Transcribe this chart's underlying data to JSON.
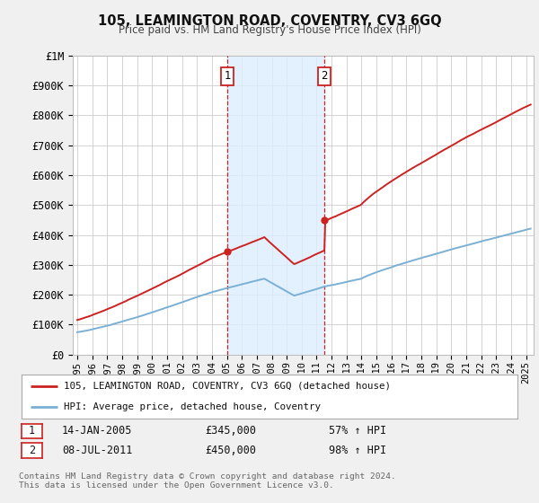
{
  "title": "105, LEAMINGTON ROAD, COVENTRY, CV3 6GQ",
  "subtitle": "Price paid vs. HM Land Registry's House Price Index (HPI)",
  "ylim": [
    0,
    1000000
  ],
  "yticks": [
    0,
    100000,
    200000,
    300000,
    400000,
    500000,
    600000,
    700000,
    800000,
    900000,
    1000000
  ],
  "ytick_labels": [
    "£0",
    "£100K",
    "£200K",
    "£300K",
    "£400K",
    "£500K",
    "£600K",
    "£700K",
    "£800K",
    "£900K",
    "£1M"
  ],
  "xlim_start": 1994.7,
  "xlim_end": 2025.5,
  "background_color": "#f0f0f0",
  "plot_bg_color": "#ffffff",
  "grid_color": "#cccccc",
  "hpi_line_color": "#7ab0d4",
  "price_line_color": "#cc2222",
  "shade_color": "#ddeeff",
  "vline_color": "#cc2222",
  "event1_x": 2005.04,
  "event1_y": 345000,
  "event1_label": "1",
  "event1_date": "14-JAN-2005",
  "event1_price": "£345,000",
  "event1_hpi": "57% ↑ HPI",
  "event2_x": 2011.52,
  "event2_y": 450000,
  "event2_label": "2",
  "event2_date": "08-JUL-2011",
  "event2_price": "£450,000",
  "event2_hpi": "98% ↑ HPI",
  "legend_line1": "105, LEAMINGTON ROAD, COVENTRY, CV3 6GQ (detached house)",
  "legend_line2": "HPI: Average price, detached house, Coventry",
  "footer1": "Contains HM Land Registry data © Crown copyright and database right 2024.",
  "footer2": "This data is licensed under the Open Government Licence v3.0."
}
